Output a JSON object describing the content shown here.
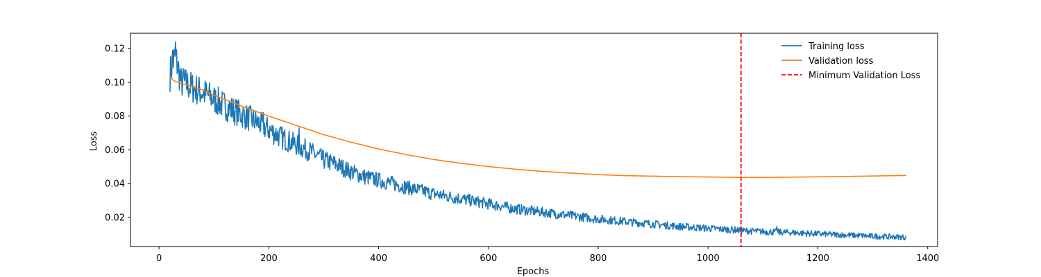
{
  "chart_data": {
    "type": "line",
    "title": "",
    "xlabel": "Epochs",
    "ylabel": "Loss",
    "xlim": [
      -52,
      1418
    ],
    "ylim": [
      0.0027,
      0.1291
    ],
    "xticks": [
      0,
      200,
      400,
      600,
      800,
      1000,
      1200,
      1400
    ],
    "yticks": [
      0.02,
      0.04,
      0.06,
      0.08,
      0.1,
      0.12
    ],
    "ytick_labels": [
      "0.02",
      "0.04",
      "0.06",
      "0.08",
      "0.10",
      "0.12"
    ],
    "grid": false,
    "legend_position": "top-right",
    "series": [
      {
        "name": "Training loss",
        "color": "#1f77b4",
        "style": "solid",
        "noisy": true,
        "x": [
          20,
          25,
          30,
          35,
          40,
          50,
          60,
          80,
          100,
          120,
          150,
          175,
          200,
          225,
          250,
          275,
          300,
          325,
          350,
          375,
          400,
          450,
          500,
          550,
          600,
          650,
          700,
          750,
          800,
          850,
          900,
          950,
          1000,
          1050,
          1060,
          1100,
          1150,
          1200,
          1250,
          1300,
          1360
        ],
        "y": [
          0.105,
          0.112,
          0.115,
          0.108,
          0.1,
          0.099,
          0.097,
          0.094,
          0.09,
          0.086,
          0.081,
          0.077,
          0.072,
          0.067,
          0.063,
          0.059,
          0.054,
          0.051,
          0.047,
          0.044,
          0.042,
          0.038,
          0.034,
          0.031,
          0.028,
          0.025,
          0.023,
          0.021,
          0.019,
          0.0175,
          0.016,
          0.0145,
          0.0135,
          0.0125,
          0.0122,
          0.0115,
          0.011,
          0.0102,
          0.0095,
          0.0088,
          0.0082
        ],
        "spikes": [
          {
            "x": 30,
            "y": 0.124
          },
          {
            "x": 25,
            "y": 0.119
          },
          {
            "x": 45,
            "y": 0.108
          },
          {
            "x": 190,
            "y": 0.082
          },
          {
            "x": 255,
            "y": 0.073
          },
          {
            "x": 1125,
            "y": 0.0145
          }
        ]
      },
      {
        "name": "Validation loss",
        "color": "#ff7f0e",
        "style": "solid",
        "noisy": false,
        "x": [
          20,
          25,
          30,
          40,
          50,
          75,
          100,
          150,
          200,
          250,
          300,
          350,
          400,
          450,
          500,
          550,
          600,
          650,
          700,
          750,
          800,
          850,
          900,
          950,
          1000,
          1060,
          1100,
          1150,
          1200,
          1250,
          1300,
          1360
        ],
        "y": [
          0.1035,
          0.1015,
          0.1005,
          0.0995,
          0.0985,
          0.096,
          0.0925,
          0.086,
          0.08,
          0.0745,
          0.069,
          0.0645,
          0.0605,
          0.0572,
          0.0543,
          0.052,
          0.0501,
          0.0485,
          0.0472,
          0.0462,
          0.0453,
          0.0447,
          0.0444,
          0.0441,
          0.0439,
          0.0437,
          0.0437,
          0.0438,
          0.044,
          0.0442,
          0.0445,
          0.0448
        ]
      }
    ],
    "vlines": [
      {
        "name": "Minimum Validation Loss",
        "x": 1060,
        "color": "#ff0000",
        "style": "dashed"
      }
    ],
    "legend": [
      {
        "label": "Training loss",
        "color": "#1f77b4",
        "style": "solid"
      },
      {
        "label": "Validation loss",
        "color": "#ff7f0e",
        "style": "solid"
      },
      {
        "label": "Minimum Validation Loss",
        "color": "#ff0000",
        "style": "dashed"
      }
    ]
  }
}
